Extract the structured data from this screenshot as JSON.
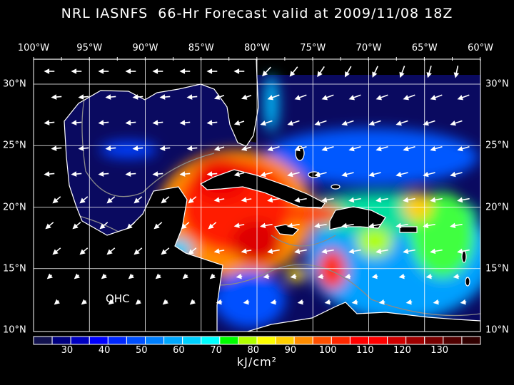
{
  "title": "NRL IASNFS  66-Hr Forecast valid at 2009/11/08 18Z",
  "lon_labels": [
    "100°W",
    "95°W",
    "90°W",
    "85°W",
    "80°W",
    "75°W",
    "70°W",
    "65°W",
    "60°W"
  ],
  "lat_labels": [
    "30°N",
    "25°N",
    "20°N",
    "15°N",
    "10°N"
  ],
  "field_label": "OHC",
  "colorbar": {
    "unit": "kJ/cm²",
    "labels": [
      "30",
      "40",
      "50",
      "60",
      "70",
      "80",
      "90",
      "100",
      "110",
      "120",
      "130"
    ],
    "colors": [
      "#12124e",
      "#000080",
      "#0000c0",
      "#0000ff",
      "#0028ff",
      "#0050ff",
      "#0080ff",
      "#00a8ff",
      "#00d0ff",
      "#00ffff",
      "#00ff00",
      "#b0ff00",
      "#ffff00",
      "#ffd000",
      "#ff8c00",
      "#ff5000",
      "#ff2800",
      "#ff0000",
      "#ff0000",
      "#d00000",
      "#a00000",
      "#780000",
      "#500000",
      "#300000"
    ]
  },
  "colors": {
    "land": "#000000",
    "coastline": "#ffffff",
    "grid": "#ffffff",
    "wind_vectors": "#ffffff",
    "contours": "#8a8a8a"
  }
}
